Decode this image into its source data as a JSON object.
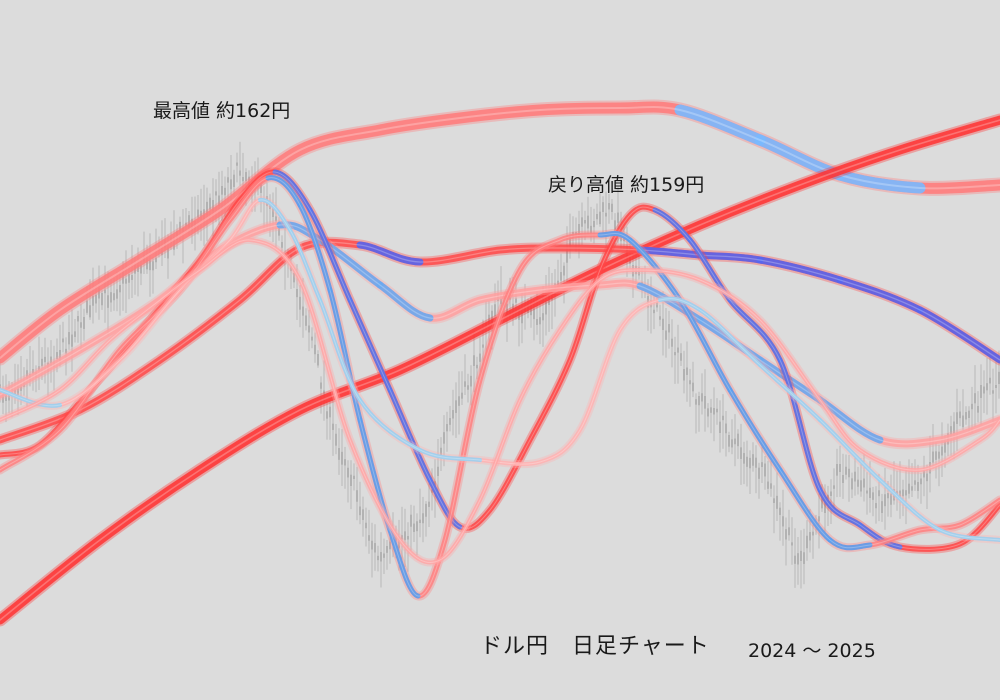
{
  "chart_data": {
    "type": "line",
    "title": "ドル円　日足チャート",
    "subtitle": "2024 ～ 2025",
    "annotations": [
      {
        "text": "最高値 約162円"
      },
      {
        "text": "戻り高値 約159円"
      }
    ],
    "series": [
      {
        "name": "",
        "color": "#ff7a7a",
        "trend_color": "#79b9ff",
        "points": [
          [
            0,
            358
          ],
          [
            60,
            310
          ],
          [
            140,
            260
          ],
          [
            220,
            210
          ],
          [
            300,
            150
          ],
          [
            380,
            130
          ],
          [
            460,
            118
          ],
          [
            540,
            110
          ],
          [
            620,
            108
          ],
          [
            680,
            110
          ],
          [
            760,
            140
          ],
          [
            840,
            175
          ],
          [
            920,
            188
          ],
          [
            1000,
            185
          ]
        ]
      },
      {
        "name": "",
        "color": "#ff3333",
        "points": [
          [
            0,
            620
          ],
          [
            100,
            540
          ],
          [
            200,
            470
          ],
          [
            300,
            410
          ],
          [
            400,
            370
          ],
          [
            500,
            320
          ],
          [
            600,
            270
          ],
          [
            700,
            225
          ],
          [
            800,
            185
          ],
          [
            900,
            150
          ],
          [
            1000,
            120
          ]
        ]
      },
      {
        "name": "",
        "color": "#ff4a4a",
        "trend_color": "#5566ee",
        "points": [
          [
            0,
            440
          ],
          [
            80,
            410
          ],
          [
            160,
            360
          ],
          [
            240,
            300
          ],
          [
            300,
            248
          ],
          [
            360,
            245
          ],
          [
            420,
            262
          ],
          [
            500,
            250
          ],
          [
            560,
            248
          ],
          [
            640,
            250
          ],
          [
            700,
            255
          ],
          [
            760,
            260
          ],
          [
            840,
            280
          ],
          [
            920,
            310
          ],
          [
            1000,
            360
          ]
        ]
      },
      {
        "name": "",
        "color": "#ffa0a0",
        "trend_color": "#6aa8f0",
        "points": [
          [
            0,
            395
          ],
          [
            80,
            350
          ],
          [
            160,
            300
          ],
          [
            220,
            250
          ],
          [
            280,
            225
          ],
          [
            320,
            240
          ],
          [
            380,
            285
          ],
          [
            430,
            318
          ],
          [
            480,
            300
          ],
          [
            540,
            290
          ],
          [
            600,
            285
          ],
          [
            640,
            286
          ],
          [
            700,
            320
          ],
          [
            760,
            360
          ],
          [
            820,
            400
          ],
          [
            880,
            440
          ],
          [
            940,
            440
          ],
          [
            1000,
            420
          ]
        ]
      },
      {
        "name": "",
        "color": "#ff4545",
        "trend_color": "#5577ee",
        "points": [
          [
            0,
            455
          ],
          [
            40,
            445
          ],
          [
            90,
            390
          ],
          [
            150,
            320
          ],
          [
            200,
            260
          ],
          [
            240,
            200
          ],
          [
            275,
            172
          ],
          [
            310,
            210
          ],
          [
            350,
            300
          ],
          [
            390,
            390
          ],
          [
            430,
            480
          ],
          [
            460,
            527
          ],
          [
            490,
            510
          ],
          [
            530,
            440
          ],
          [
            570,
            360
          ],
          [
            600,
            270
          ],
          [
            630,
            215
          ],
          [
            655,
            210
          ],
          [
            690,
            240
          ],
          [
            730,
            300
          ],
          [
            780,
            360
          ],
          [
            820,
            490
          ],
          [
            860,
            525
          ],
          [
            900,
            547
          ],
          [
            960,
            544
          ],
          [
            1000,
            505
          ]
        ]
      },
      {
        "name": "",
        "color": "#ff8080",
        "trend_color": "#5aa0f0",
        "points": [
          [
            0,
            470
          ],
          [
            60,
            430
          ],
          [
            120,
            350
          ],
          [
            180,
            290
          ],
          [
            230,
            220
          ],
          [
            268,
            178
          ],
          [
            300,
            205
          ],
          [
            330,
            290
          ],
          [
            360,
            420
          ],
          [
            390,
            530
          ],
          [
            418,
            596
          ],
          [
            445,
            540
          ],
          [
            480,
            380
          ],
          [
            520,
            270
          ],
          [
            560,
            240
          ],
          [
            600,
            235
          ],
          [
            630,
            240
          ],
          [
            680,
            300
          ],
          [
            730,
            390
          ],
          [
            780,
            470
          ],
          [
            830,
            540
          ],
          [
            870,
            545
          ],
          [
            920,
            530
          ],
          [
            960,
            525
          ],
          [
            1000,
            500
          ]
        ]
      },
      {
        "name": "",
        "color": "#ffb2b2",
        "trend_color": "#99d2f2",
        "points": [
          [
            0,
            390
          ],
          [
            60,
            405
          ],
          [
            120,
            360
          ],
          [
            180,
            290
          ],
          [
            230,
            240
          ],
          [
            260,
            200
          ],
          [
            290,
            230
          ],
          [
            320,
            300
          ],
          [
            360,
            400
          ],
          [
            420,
            450
          ],
          [
            480,
            460
          ],
          [
            540,
            462
          ],
          [
            580,
            430
          ],
          [
            620,
            330
          ],
          [
            660,
            300
          ],
          [
            700,
            310
          ],
          [
            760,
            365
          ],
          [
            820,
            420
          ],
          [
            880,
            480
          ],
          [
            940,
            530
          ],
          [
            1000,
            540
          ]
        ]
      },
      {
        "name": "",
        "color": "#ffa6a6",
        "points": [
          [
            0,
            420
          ],
          [
            60,
            390
          ],
          [
            110,
            340
          ],
          [
            160,
            300
          ],
          [
            200,
            270
          ],
          [
            250,
            240
          ],
          [
            300,
            280
          ],
          [
            350,
            440
          ],
          [
            400,
            540
          ],
          [
            440,
            560
          ],
          [
            480,
            500
          ],
          [
            520,
            400
          ],
          [
            560,
            330
          ],
          [
            600,
            280
          ],
          [
            640,
            270
          ],
          [
            700,
            280
          ],
          [
            760,
            320
          ],
          [
            820,
            400
          ],
          [
            860,
            450
          ],
          [
            920,
            470
          ],
          [
            980,
            440
          ],
          [
            1000,
            420
          ]
        ]
      }
    ],
    "candles": {
      "color": "#9a9a9a",
      "close_points": [
        [
          0,
          395
        ],
        [
          50,
          360
        ],
        [
          100,
          300
        ],
        [
          150,
          260
        ],
        [
          200,
          215
        ],
        [
          240,
          170
        ],
        [
          270,
          200
        ],
        [
          300,
          300
        ],
        [
          340,
          450
        ],
        [
          380,
          560
        ],
        [
          420,
          520
        ],
        [
          460,
          400
        ],
        [
          500,
          300
        ],
        [
          540,
          320
        ],
        [
          580,
          230
        ],
        [
          610,
          210
        ],
        [
          650,
          300
        ],
        [
          700,
          400
        ],
        [
          760,
          470
        ],
        [
          800,
          560
        ],
        [
          840,
          470
        ],
        [
          880,
          500
        ],
        [
          920,
          480
        ],
        [
          960,
          420
        ],
        [
          1000,
          380
        ]
      ]
    }
  }
}
